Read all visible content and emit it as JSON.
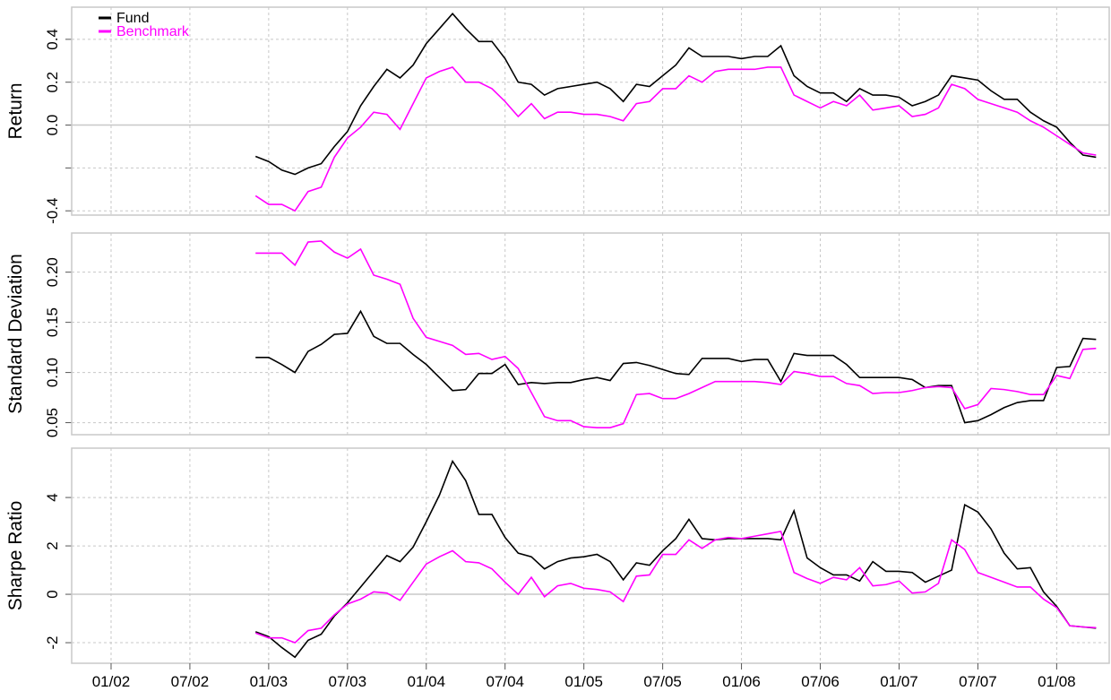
{
  "chart_data": {
    "type": "line",
    "x": [
      "12/02",
      "01/03",
      "02/03",
      "03/03",
      "04/03",
      "05/03",
      "06/03",
      "07/03",
      "08/03",
      "09/03",
      "10/03",
      "11/03",
      "12/03",
      "01/04",
      "02/04",
      "03/04",
      "04/04",
      "05/04",
      "06/04",
      "07/04",
      "08/04",
      "09/04",
      "10/04",
      "11/04",
      "12/04",
      "01/05",
      "02/05",
      "03/05",
      "04/05",
      "05/05",
      "06/05",
      "07/05",
      "08/05",
      "09/05",
      "10/05",
      "11/05",
      "12/05",
      "01/06",
      "02/06",
      "03/06",
      "04/06",
      "05/06",
      "06/06",
      "07/06",
      "08/06",
      "09/06",
      "10/06",
      "11/06",
      "12/06",
      "01/07",
      "02/07",
      "03/07",
      "04/07",
      "05/07",
      "06/07",
      "07/07",
      "08/07",
      "09/07",
      "10/07",
      "11/07",
      "12/07",
      "01/08",
      "02/08",
      "03/08",
      "04/08"
    ],
    "xlim": [
      "10/01",
      "05/08"
    ],
    "xticks": [
      "01/02",
      "07/02",
      "01/03",
      "07/03",
      "01/04",
      "07/04",
      "01/05",
      "07/05",
      "01/06",
      "07/06",
      "01/07",
      "07/07",
      "01/08"
    ],
    "grid": true,
    "legend": {
      "position": "top-left",
      "entries": [
        {
          "name": "Fund",
          "color": "#000000"
        },
        {
          "name": "Benchmark",
          "color": "#ff00ff"
        }
      ]
    },
    "panels": [
      {
        "ylabel": "Return",
        "ylim": [
          -0.42,
          0.55
        ],
        "zero_line": true,
        "yticks": [
          -0.4,
          {
            "value": -0.2,
            "label": null
          },
          {
            "value": 0,
            "label": "0.0"
          },
          0.2,
          0.4
        ],
        "series": [
          {
            "values": [
              -0.146,
              -0.17,
              -0.21,
              -0.23,
              -0.2,
              -0.18,
              -0.1,
              -0.03,
              0.09,
              0.18,
              0.26,
              0.22,
              0.28,
              0.38,
              0.45,
              0.52,
              0.45,
              0.39,
              0.39,
              0.31,
              0.2,
              0.19,
              0.14,
              0.17,
              0.18,
              0.19,
              0.2,
              0.17,
              0.11,
              0.19,
              0.18,
              0.23,
              0.28,
              0.36,
              0.32,
              0.32,
              0.32,
              0.31,
              0.32,
              0.32,
              0.37,
              0.23,
              0.18,
              0.15,
              0.15,
              0.11,
              0.17,
              0.14,
              0.14,
              0.13,
              0.09,
              0.11,
              0.14,
              0.23,
              0.22,
              0.21,
              0.16,
              0.12,
              0.12,
              0.06,
              0.02,
              -0.01,
              -0.08,
              -0.14,
              -0.15
            ]
          },
          {
            "values": [
              -0.33,
              -0.37,
              -0.37,
              -0.4,
              -0.31,
              -0.29,
              -0.15,
              -0.06,
              -0.01,
              0.06,
              0.05,
              -0.02,
              0.1,
              0.22,
              0.25,
              0.27,
              0.2,
              0.2,
              0.17,
              0.11,
              0.04,
              0.1,
              0.03,
              0.06,
              0.06,
              0.05,
              0.05,
              0.04,
              0.02,
              0.1,
              0.11,
              0.17,
              0.17,
              0.23,
              0.2,
              0.25,
              0.26,
              0.26,
              0.26,
              0.27,
              0.27,
              0.14,
              0.11,
              0.08,
              0.11,
              0.09,
              0.14,
              0.07,
              0.08,
              0.09,
              0.04,
              0.05,
              0.08,
              0.19,
              0.17,
              0.12,
              0.1,
              0.08,
              0.06,
              0.02,
              -0.01,
              -0.05,
              -0.09,
              -0.13,
              -0.14
            ]
          }
        ]
      },
      {
        "ylabel": "Standard Deviation",
        "ylim": [
          0.038,
          0.239
        ],
        "zero_line": false,
        "yticks": [
          0.05,
          {
            "value": 0.1,
            "label": "0.10"
          },
          0.15,
          {
            "value": 0.2,
            "label": "0.20"
          }
        ],
        "series": [
          {
            "values": [
              0.115,
              0.115,
              0.108,
              0.1,
              0.121,
              0.128,
              0.138,
              0.139,
              0.161,
              0.136,
              0.129,
              0.129,
              0.118,
              0.108,
              0.095,
              0.082,
              0.083,
              0.099,
              0.099,
              0.108,
              0.088,
              0.09,
              0.089,
              0.09,
              0.09,
              0.093,
              0.095,
              0.092,
              0.109,
              0.11,
              0.107,
              0.103,
              0.099,
              0.098,
              0.114,
              0.114,
              0.114,
              0.111,
              0.113,
              0.113,
              0.091,
              0.119,
              0.117,
              0.117,
              0.117,
              0.108,
              0.095,
              0.095,
              0.095,
              0.095,
              0.093,
              0.085,
              0.087,
              0.087,
              0.05,
              0.052,
              0.058,
              0.065,
              0.07,
              0.072,
              0.072,
              0.105,
              0.106,
              0.134,
              0.133
            ]
          },
          {
            "values": [
              0.219,
              0.219,
              0.219,
              0.207,
              0.23,
              0.231,
              0.22,
              0.214,
              0.223,
              0.197,
              0.193,
              0.188,
              0.154,
              0.135,
              0.131,
              0.127,
              0.118,
              0.119,
              0.113,
              0.116,
              0.104,
              0.08,
              0.056,
              0.052,
              0.052,
              0.046,
              0.045,
              0.045,
              0.049,
              0.078,
              0.079,
              0.074,
              0.074,
              0.079,
              0.085,
              0.091,
              0.091,
              0.091,
              0.091,
              0.09,
              0.088,
              0.101,
              0.099,
              0.096,
              0.096,
              0.089,
              0.087,
              0.079,
              0.08,
              0.08,
              0.082,
              0.085,
              0.086,
              0.085,
              0.064,
              0.068,
              0.084,
              0.083,
              0.081,
              0.078,
              0.078,
              0.097,
              0.094,
              0.123,
              0.124
            ]
          }
        ]
      },
      {
        "ylabel": "Sharpe Ratio",
        "ylim": [
          -2.85,
          6.04
        ],
        "zero_line": true,
        "yticks": [
          -2,
          0,
          2,
          4
        ],
        "series": [
          {
            "values": [
              -1.55,
              -1.75,
              -2.2,
              -2.6,
              -1.9,
              -1.65,
              -0.9,
              -0.35,
              0.3,
              0.95,
              1.6,
              1.35,
              1.95,
              3.0,
              4.1,
              5.5,
              4.7,
              3.3,
              3.3,
              2.35,
              1.7,
              1.55,
              1.05,
              1.35,
              1.5,
              1.55,
              1.65,
              1.35,
              0.6,
              1.3,
              1.2,
              1.8,
              2.3,
              3.1,
              2.3,
              2.25,
              2.3,
              2.3,
              2.3,
              2.3,
              2.25,
              3.45,
              1.5,
              1.1,
              0.8,
              0.8,
              0.55,
              1.35,
              0.95,
              0.95,
              0.9,
              0.5,
              0.75,
              1.0,
              3.7,
              3.4,
              2.7,
              1.7,
              1.05,
              1.1,
              0.1,
              -0.5,
              -1.3,
              -1.35,
              -1.4
            ]
          },
          {
            "values": [
              -1.6,
              -1.8,
              -1.8,
              -2.0,
              -1.5,
              -1.4,
              -0.85,
              -0.4,
              -0.2,
              0.1,
              0.05,
              -0.25,
              0.5,
              1.25,
              1.55,
              1.8,
              1.35,
              1.3,
              1.05,
              0.5,
              0.0,
              0.7,
              -0.1,
              0.35,
              0.45,
              0.25,
              0.2,
              0.1,
              -0.3,
              0.75,
              0.8,
              1.65,
              1.65,
              2.25,
              1.9,
              2.25,
              2.35,
              2.3,
              2.4,
              2.5,
              2.6,
              0.9,
              0.65,
              0.45,
              0.7,
              0.6,
              1.1,
              0.35,
              0.4,
              0.55,
              0.05,
              0.1,
              0.45,
              2.25,
              1.85,
              0.9,
              0.7,
              0.5,
              0.3,
              0.3,
              -0.2,
              -0.55,
              -1.3,
              -1.35,
              -1.38
            ]
          }
        ]
      }
    ]
  }
}
